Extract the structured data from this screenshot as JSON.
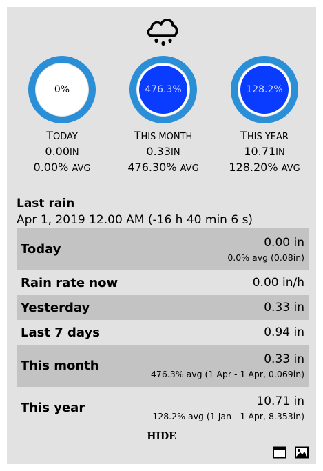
{
  "weather_icon": "rain-cloud-icon",
  "gauges": [
    {
      "key": "today",
      "label": "0%",
      "caption_first": "T",
      "caption_rest": "ODAY",
      "amount": "0.00",
      "unit": "IN",
      "avg": "0.00%",
      "avg_label": "AVG",
      "fill": 0.0
    },
    {
      "key": "month",
      "label": "476.3%",
      "caption_first": "T",
      "caption_rest": "HIS MONTH",
      "amount": "0.33",
      "unit": "IN",
      "avg": "476.30%",
      "avg_label": "AVG",
      "fill": 1.0
    },
    {
      "key": "year",
      "label": "128.2%",
      "caption_first": "T",
      "caption_rest": "HIS YEAR",
      "amount": "10.71",
      "unit": "IN",
      "avg": "128.20%",
      "avg_label": "AVG",
      "fill": 1.0
    }
  ],
  "last_rain": {
    "title": "Last rain",
    "value": "Apr 1, 2019 12.00 AM (-16 h 40 min 6 s)"
  },
  "rows": [
    {
      "label": "Today",
      "value": "0.00 in",
      "sub": "0.0% avg (0.08in)"
    },
    {
      "label": "Rain rate now",
      "value": "0.00 in/h",
      "sub": ""
    },
    {
      "label": "Yesterday",
      "value": "0.33 in",
      "sub": ""
    },
    {
      "label": "Last 7 days",
      "value": "0.94 in",
      "sub": ""
    },
    {
      "label": "This month",
      "value": "0.33 in",
      "sub": "476.3% avg (1 Apr - 1 Apr, 0.069in)"
    },
    {
      "label": "This year",
      "value": "10.71 in",
      "sub": "128.2% avg (1 Jan - 1 Apr, 8.353in)"
    }
  ],
  "hide_label": "HIDE",
  "colors": {
    "ring": "#2a8fd6",
    "fill": "#0a3cff",
    "panel": "#e2e2e2",
    "shade": "#c3c3c3"
  },
  "footer_icons": [
    "window-icon",
    "image-icon"
  ]
}
